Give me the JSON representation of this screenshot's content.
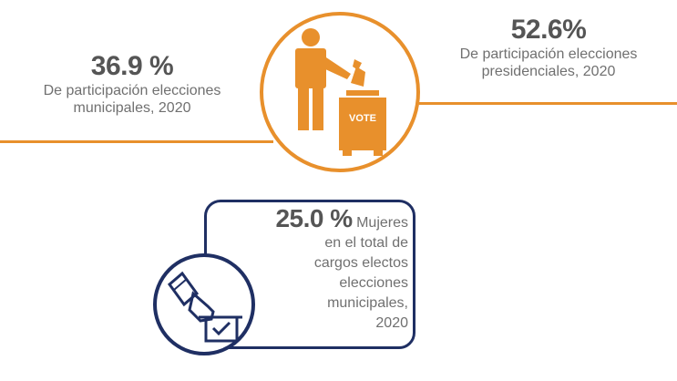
{
  "left_stat": {
    "value": "36.9 %",
    "label_line1": "De participación elecciones",
    "label_line2": "municipales, 2020"
  },
  "right_stat": {
    "value": "52.6%",
    "label_line1": "De participación elecciones",
    "label_line2": "presidenciales, 2020"
  },
  "vote_box_label": "VOTE",
  "women_stat": {
    "value": "25.0 %",
    "line1": "Mujeres",
    "line2": "en el total de",
    "line3": "cargos electos",
    "line4": "elecciones",
    "line5": "municipales,",
    "line6": "2020"
  },
  "colors": {
    "orange": "#e8902c",
    "navy": "#1f2f63",
    "text_gray": "#707070"
  },
  "icons": [
    "voter-icon",
    "ballot-box-icon",
    "hand-ballot-icon"
  ]
}
